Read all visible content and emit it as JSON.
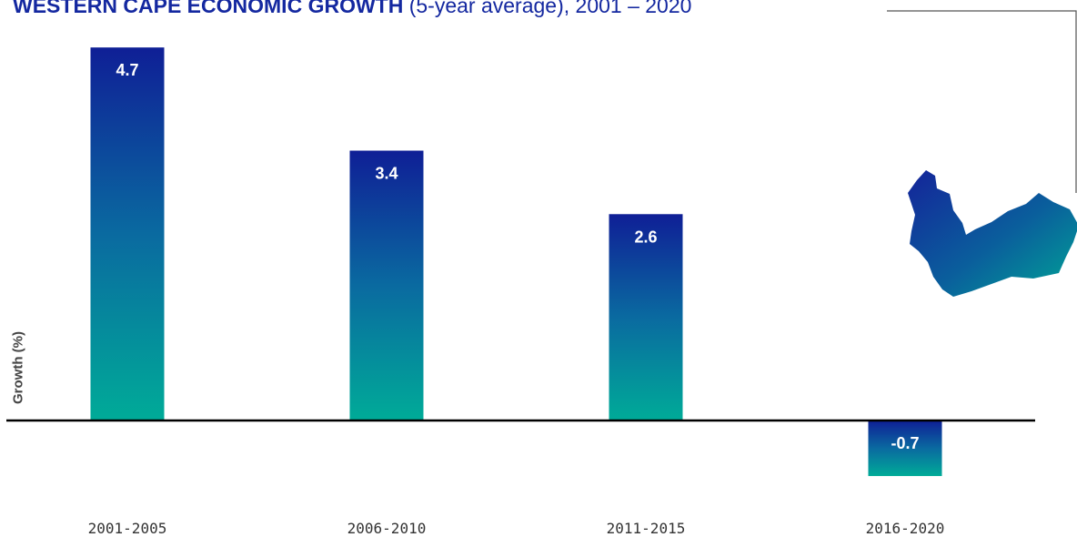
{
  "title": {
    "bold": "WESTERN CAPE ECONOMIC GROWTH",
    "rest": " (5-year average), 2001 – 2020"
  },
  "colors": {
    "title": "#1428a0",
    "bar_top": "#0f1f96",
    "bar_mid": "#0a6aa0",
    "bar_bottom": "#00ab98",
    "axis": "#000000",
    "value_label": "#ffffff",
    "tick_label": "#333333"
  },
  "icons": [
    "western-cape-map-icon"
  ],
  "chart_data": {
    "type": "bar",
    "title": "WESTERN CAPE ECONOMIC GROWTH (5-year average), 2001 – 2020",
    "xlabel": "",
    "ylabel": "Growth (%)",
    "categories": [
      "2001-2005",
      "2006-2010",
      "2011-2015",
      "2016-2020"
    ],
    "values": [
      4.7,
      3.4,
      2.6,
      -0.7
    ],
    "data_labels": [
      "4.7",
      "3.4",
      "2.6",
      "-0.7"
    ],
    "ylim": [
      -1.0,
      5.0
    ],
    "grid": false,
    "legend": "none"
  }
}
